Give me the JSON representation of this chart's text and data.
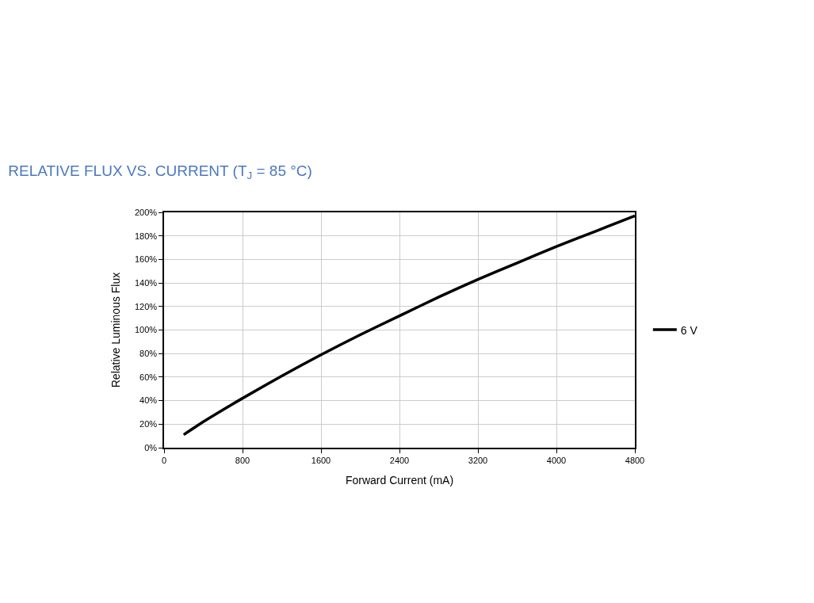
{
  "chart_data": {
    "type": "line",
    "title": "RELATIVE FLUX VS. CURRENT (T$_{J}$ = 85 °C)",
    "xlabel": "Forward Current (mA)",
    "ylabel": "Relative Luminous Flux",
    "x": [
      200,
      400,
      800,
      1200,
      1600,
      2000,
      2400,
      2800,
      3200,
      3600,
      4000,
      4400,
      4800
    ],
    "series": [
      {
        "name": "6 V",
        "color": "#000000",
        "values": [
          11,
          22,
          42,
          61,
          79,
          96,
          112,
          128,
          143,
          157,
          171,
          184,
          197
        ]
      }
    ],
    "xlim": [
      0,
      4800
    ],
    "xticks": [
      0,
      800,
      1600,
      2400,
      3200,
      4000,
      4800
    ],
    "ylim": [
      0,
      200
    ],
    "yticks": [
      {
        "value": 0,
        "label": "0%"
      },
      {
        "value": 20,
        "label": "20%"
      },
      {
        "value": 40,
        "label": "40%"
      },
      {
        "value": 60,
        "label": "60%"
      },
      {
        "value": 80,
        "label": "80%"
      },
      {
        "value": 100,
        "label": "100%"
      },
      {
        "value": 120,
        "label": "120%"
      },
      {
        "value": 140,
        "label": "140%"
      },
      {
        "value": 160,
        "label": "160%"
      },
      {
        "value": 180,
        "label": "180%"
      },
      {
        "value": 200,
        "label": "200%"
      }
    ],
    "grid": true,
    "legend": "right",
    "marker": "none",
    "line_style": "solid"
  }
}
